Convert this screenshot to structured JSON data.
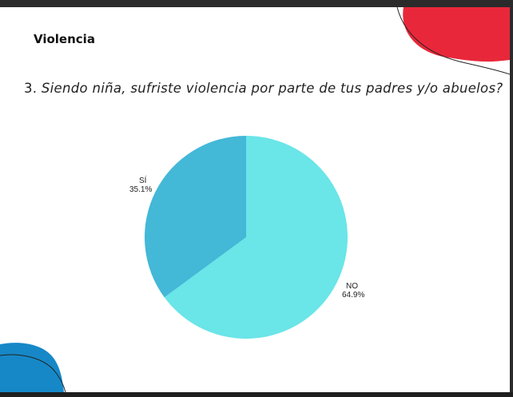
{
  "slide": {
    "heading": "Violencia",
    "question_number": "3.",
    "question_text": "Siendo niña, sufriste violencia por parte de tus padres y/o abuelos?"
  },
  "colors": {
    "slice_no": "#6ae5e8",
    "slice_si": "#43b8d7",
    "blob_red": "#e8283a",
    "blob_blue": "#1688c7"
  },
  "chart_data": {
    "type": "pie",
    "title": "",
    "start_angle_deg": 0,
    "direction": "clockwise",
    "slices": [
      {
        "label": "NO",
        "value": 64.9,
        "display": "64.9%",
        "color": "#6ae5e8"
      },
      {
        "label": "SÍ",
        "value": 35.1,
        "display": "35.1%",
        "color": "#43b8d7"
      }
    ]
  }
}
